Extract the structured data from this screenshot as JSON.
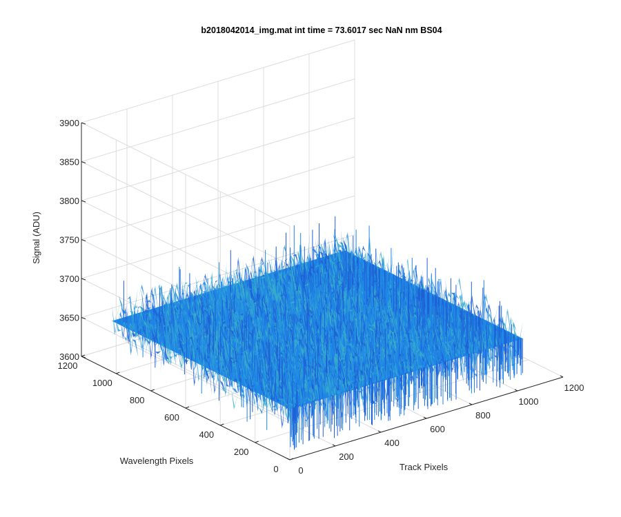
{
  "chart_data": {
    "type": "surface",
    "title": "b2018042014_img.mat int time = 73.6017 sec   NaN nm BS04",
    "xlabel": "Track Pixels",
    "ylabel": "Wavelength Pixels",
    "zlabel": "Signal (ADU)",
    "xlim": [
      0,
      1200
    ],
    "ylim": [
      0,
      1200
    ],
    "zlim": [
      3600,
      3900
    ],
    "x_ticks": [
      0,
      200,
      400,
      600,
      800,
      1000,
      1200
    ],
    "y_ticks": [
      0,
      200,
      400,
      600,
      800,
      1000,
      1200
    ],
    "z_ticks": [
      3600,
      3650,
      3700,
      3750,
      3800,
      3850,
      3900
    ],
    "surface_extent": {
      "x": [
        0,
        1024
      ],
      "y": [
        0,
        1024
      ]
    },
    "surface_mean": 3665,
    "surface_noise_spread": 45,
    "grid": true,
    "colors": {
      "surface_dark": "#1f5fd6",
      "surface_mid": "#1f86e6",
      "surface_light": "#2fa0d8",
      "surface_highlight": "#3bb0c8",
      "axis": "#262626",
      "grid": "#dcdcdc"
    }
  }
}
